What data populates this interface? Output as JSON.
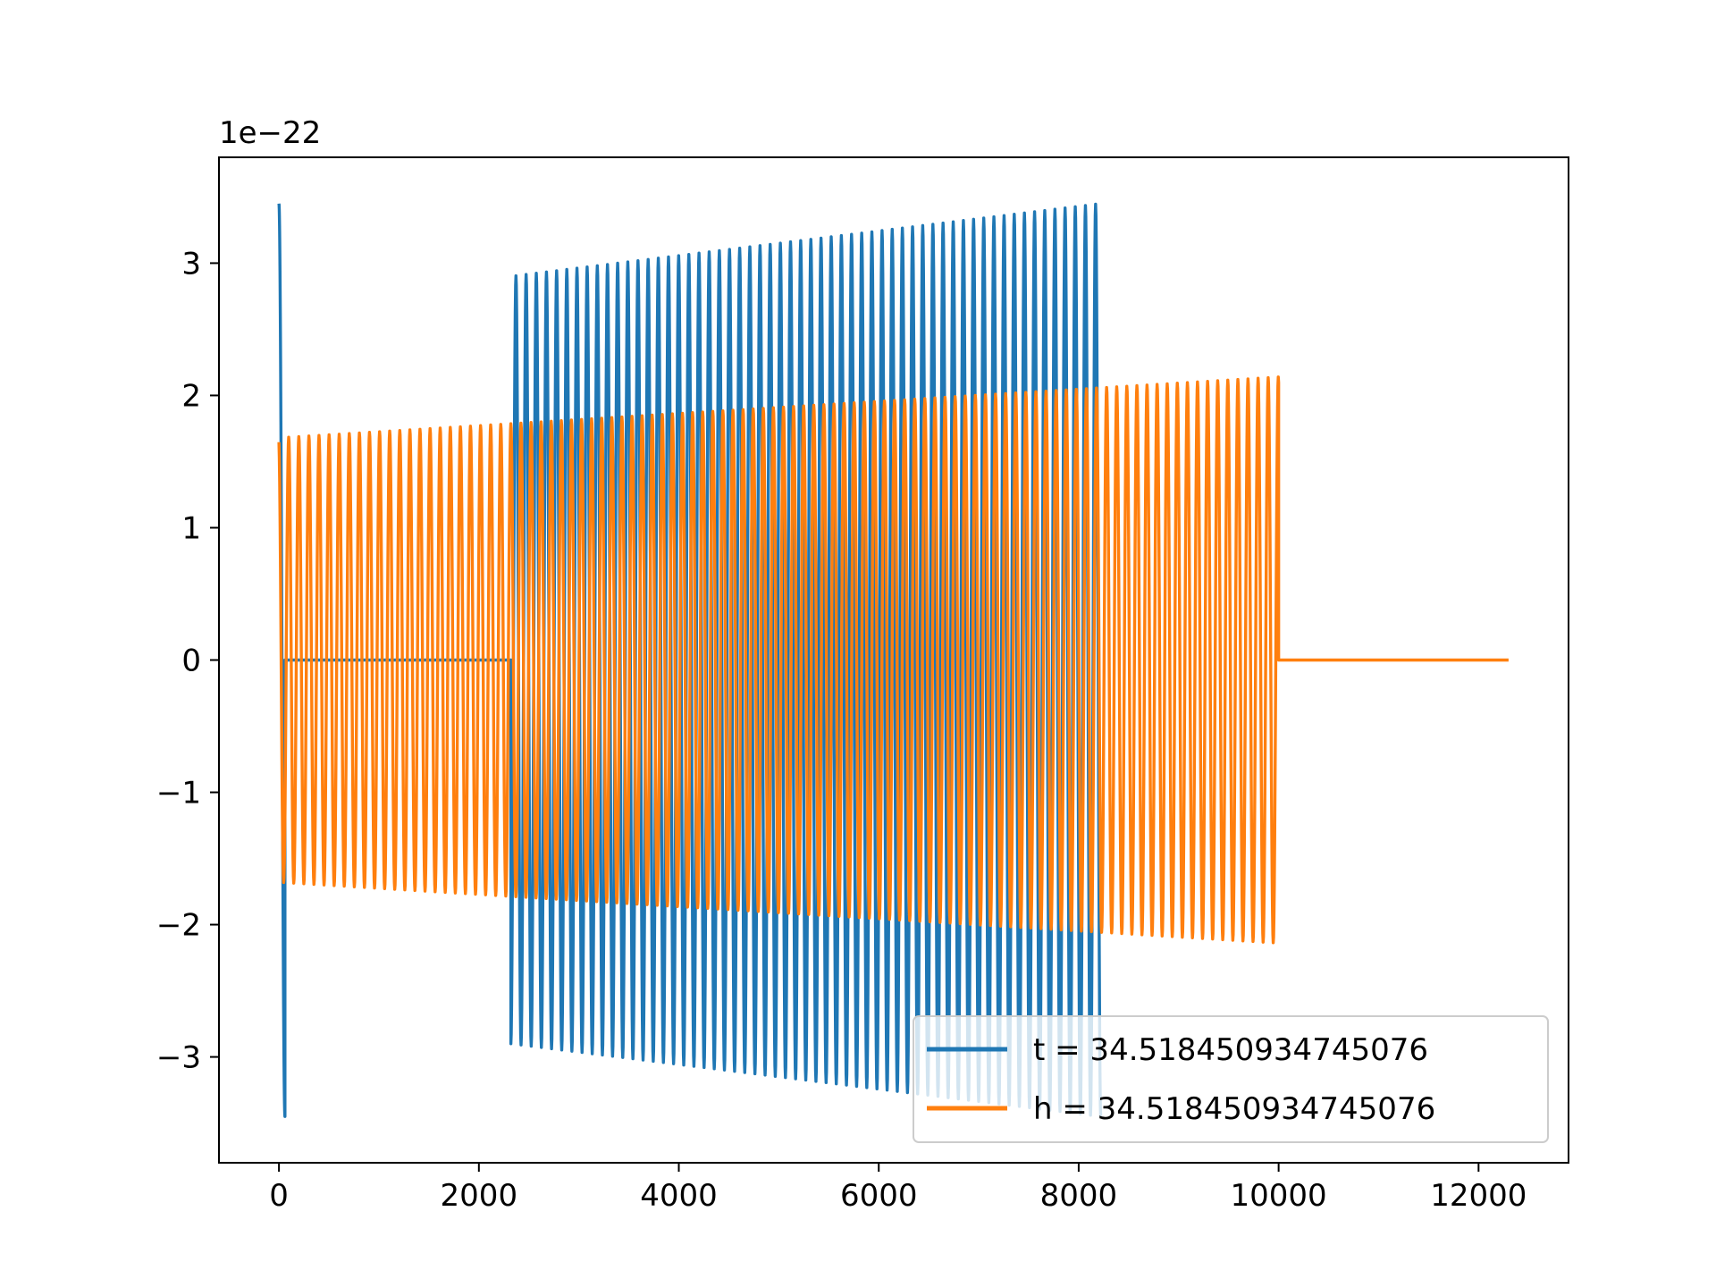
{
  "chart_data": {
    "type": "line",
    "title": "",
    "xlabel": "",
    "ylabel": "",
    "y_offset_label": "1e−22",
    "xlim": [
      -600,
      12900
    ],
    "ylim": [
      -3.8,
      3.8
    ],
    "x_ticks": [
      0,
      2000,
      4000,
      6000,
      8000,
      10000,
      12000
    ],
    "x_tick_labels": [
      "0",
      "2000",
      "4000",
      "6000",
      "8000",
      "10000",
      "12000"
    ],
    "y_ticks": [
      -3,
      -2,
      -1,
      0,
      1,
      2,
      3
    ],
    "y_tick_labels": [
      "−3",
      "−2",
      "−1",
      "0",
      "1",
      "2",
      "3"
    ],
    "grid": false,
    "legend_position": "lower-right",
    "series": [
      {
        "name": "t = 34.518450934745076",
        "color": "#1f77b4",
        "segments": [
          {
            "x_start": 0,
            "x_end": 60,
            "amp_start": 3.45,
            "amp_end": 3.45,
            "cycles": 0.5,
            "phase": 0
          },
          {
            "x_start": 60,
            "x_end": 2320,
            "flat": 0
          },
          {
            "x_start": 2320,
            "x_end": 8220,
            "amp_start": 2.9,
            "amp_end": 3.45,
            "cycles": 58,
            "phase": 3.14159
          }
        ]
      },
      {
        "name": "h = 34.518450934745076",
        "color": "#ff7f0e",
        "segments": [
          {
            "x_start": 0,
            "x_end": 10000,
            "amp_start": 1.68,
            "amp_end": 2.14,
            "cycles": 99,
            "phase": 0.2
          },
          {
            "x_start": 10000,
            "x_end": 12300,
            "flat": 0
          }
        ]
      }
    ]
  }
}
